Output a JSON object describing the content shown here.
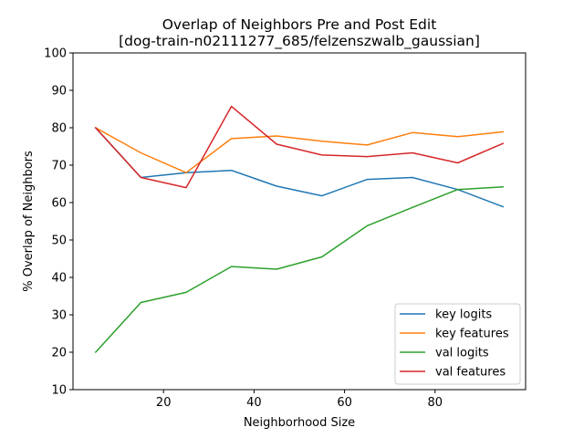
{
  "chart_data": {
    "type": "line",
    "title_line1": "Overlap of Neighbors Pre and Post Edit",
    "title_line2": "[dog-train-n02111277_685/felzenszwalb_gaussian]",
    "xlabel": "Neighborhood Size",
    "ylabel": "% Overlap of Neighbors",
    "xlim": [
      0,
      100
    ],
    "ylim": [
      10,
      100
    ],
    "x_ticks": [
      20,
      40,
      60,
      80
    ],
    "y_ticks": [
      10,
      20,
      30,
      40,
      50,
      60,
      70,
      80,
      90,
      100
    ],
    "x": [
      5,
      15,
      25,
      35,
      45,
      55,
      65,
      75,
      85,
      95
    ],
    "legend_position": "lower right",
    "grid": false,
    "series": [
      {
        "name": "key logits",
        "color": "#1f77b4",
        "values": [
          80,
          66.7,
          68,
          68.6,
          64.4,
          61.8,
          66.2,
          66.7,
          63.5,
          58.9
        ]
      },
      {
        "name": "key features",
        "color": "#ff7f0e",
        "values": [
          80,
          73.3,
          68,
          77.1,
          77.8,
          76.4,
          75.4,
          78.7,
          77.6,
          78.9
        ]
      },
      {
        "name": "val logits",
        "color": "#2ca02c",
        "values": [
          20,
          33.3,
          36,
          42.9,
          42.2,
          45.5,
          53.8,
          58.7,
          63.5,
          64.2
        ]
      },
      {
        "name": "val features",
        "color": "#d62728",
        "values": [
          80,
          66.7,
          64,
          85.7,
          75.6,
          72.7,
          72.3,
          73.3,
          70.6,
          75.8
        ]
      }
    ]
  }
}
